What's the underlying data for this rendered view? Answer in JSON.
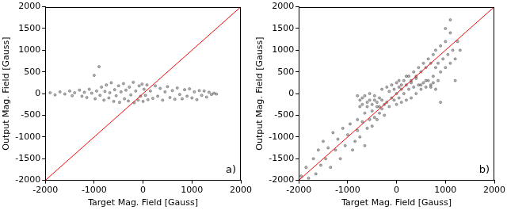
{
  "chart_data": [
    {
      "type": "scatter",
      "x_label": "Target Mag. Field [Gauss]",
      "y_label": "Output Mag. Field [Gauss]",
      "xlim": [
        -2000,
        2000
      ],
      "ylim": [
        -2000,
        2000
      ],
      "xticks": [
        -2000,
        -1000,
        0,
        1000,
        2000
      ],
      "yticks": [
        -2000,
        -1500,
        -1000,
        -500,
        0,
        500,
        1000,
        1500,
        2000
      ],
      "grid": false,
      "annotations": [
        "a)"
      ],
      "series": [
        {
          "type": "scatter",
          "color": "#000000",
          "marker": "circle",
          "x": [
            -1900,
            -1800,
            -1700,
            -1600,
            -1500,
            -1450,
            -1400,
            -1300,
            -1250,
            -1200,
            -1150,
            -1100,
            -1050,
            -1000,
            -980,
            -950,
            -900,
            -880,
            -850,
            -800,
            -780,
            -750,
            -700,
            -680,
            -650,
            -600,
            -580,
            -550,
            -500,
            -480,
            -450,
            -400,
            -380,
            -350,
            -300,
            -280,
            -250,
            -200,
            -180,
            -150,
            -100,
            -80,
            -50,
            -20,
            0,
            20,
            50,
            80,
            100,
            150,
            200,
            250,
            300,
            350,
            400,
            450,
            500,
            550,
            600,
            650,
            700,
            750,
            800,
            850,
            900,
            950,
            1000,
            1050,
            1100,
            1150,
            1200,
            1250,
            1300,
            1350,
            1400,
            1450,
            1500
          ],
          "values": [
            20,
            -30,
            40,
            -10,
            60,
            -50,
            20,
            80,
            -60,
            30,
            -90,
            100,
            10,
            420,
            -120,
            60,
            620,
            -40,
            150,
            -150,
            50,
            200,
            -100,
            20,
            250,
            -180,
            90,
            -50,
            180,
            -200,
            40,
            230,
            -120,
            80,
            -170,
            150,
            -30,
            260,
            -210,
            60,
            -150,
            180,
            -60,
            220,
            -180,
            100,
            -40,
            200,
            -140,
            60,
            -110,
            180,
            -60,
            120,
            -150,
            40,
            160,
            -90,
            70,
            -130,
            130,
            -20,
            -120,
            90,
            -60,
            110,
            -100,
            40,
            -140,
            70,
            -40,
            60,
            -80,
            30,
            -20,
            10,
            -10
          ]
        },
        {
          "type": "line",
          "color": "#ff0000",
          "line_style": "solid",
          "x": [
            -2000,
            2000
          ],
          "values": [
            -2000,
            2000
          ]
        }
      ]
    },
    {
      "type": "scatter",
      "x_label": "Target Mag. Field [Gauss]",
      "y_label": "Output Mag. Field [Gauss]",
      "xlim": [
        -2000,
        2000
      ],
      "ylim": [
        -2000,
        2000
      ],
      "xticks": [
        -2000,
        -1000,
        0,
        1000,
        2000
      ],
      "yticks": [
        -2000,
        -1500,
        -1000,
        -500,
        0,
        500,
        1000,
        1500,
        2000
      ],
      "grid": false,
      "annotations": [
        "b)"
      ],
      "series": [
        {
          "type": "scatter",
          "color": "#000000",
          "marker": "circle",
          "x": [
            -1950,
            -1850,
            -1800,
            -1700,
            -1650,
            -1600,
            -1550,
            -1500,
            -1450,
            -1400,
            -1350,
            -1300,
            -1250,
            -1200,
            -1150,
            -1100,
            -1050,
            -1000,
            -950,
            -900,
            -850,
            -800,
            -800,
            -750,
            -750,
            -700,
            -700,
            -650,
            -650,
            -600,
            -600,
            -550,
            -550,
            -500,
            -500,
            -450,
            -450,
            -400,
            -400,
            -350,
            -350,
            -300,
            -300,
            -250,
            -250,
            -200,
            -200,
            -150,
            -150,
            -100,
            -100,
            -50,
            -50,
            0,
            0,
            0,
            50,
            50,
            100,
            100,
            150,
            150,
            200,
            200,
            250,
            250,
            300,
            300,
            350,
            350,
            400,
            400,
            450,
            450,
            500,
            500,
            550,
            550,
            600,
            600,
            650,
            650,
            700,
            700,
            750,
            750,
            800,
            800,
            850,
            850,
            900,
            900,
            950,
            1000,
            1000,
            1050,
            1100,
            1100,
            1150,
            1200,
            1250,
            1300,
            1100,
            1000,
            1200,
            900,
            -800,
            -750,
            -700,
            -650,
            -600,
            -550,
            -500,
            -450,
            -400,
            -350,
            -300,
            50,
            100,
            200,
            300,
            400,
            500,
            600,
            700,
            750,
            800
          ],
          "values": [
            -1900,
            -1700,
            -1950,
            -1500,
            -1850,
            -1300,
            -1650,
            -1100,
            -1500,
            -1250,
            -1700,
            -900,
            -1300,
            -1050,
            -1500,
            -800,
            -1200,
            -950,
            -700,
            -1300,
            -1100,
            -600,
            -850,
            -1000,
            -300,
            -650,
            -100,
            -450,
            -1200,
            -800,
            -200,
            -600,
            0,
            -400,
            -750,
            -550,
            -150,
            -300,
            -600,
            -450,
            -100,
            -350,
            100,
            -250,
            -500,
            -200,
            150,
            -300,
            50,
            -100,
            200,
            -150,
            100,
            0,
            250,
            -250,
            150,
            -100,
            100,
            -200,
            300,
            0,
            200,
            -150,
            400,
            100,
            300,
            -100,
            500,
            150,
            400,
            0,
            600,
            200,
            500,
            100,
            700,
            250,
            600,
            150,
            800,
            300,
            700,
            200,
            900,
            400,
            600,
            1000,
            700,
            300,
            1100,
            500,
            800,
            1200,
            600,
            900,
            1400,
            700,
            1000,
            800,
            1200,
            1000,
            1700,
            1500,
            300,
            -200,
            -50,
            -150,
            -250,
            -50,
            -300,
            -150,
            -250,
            -50,
            -200,
            -300,
            -150,
            300,
            200,
            400,
            250,
            350,
            200,
            300,
            150,
            250,
            100
          ]
        },
        {
          "type": "line",
          "color": "#ff0000",
          "line_style": "solid",
          "x": [
            -2000,
            2000
          ],
          "values": [
            -2000,
            2000
          ]
        }
      ]
    }
  ]
}
